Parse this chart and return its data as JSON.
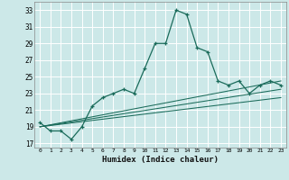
{
  "title": "",
  "xlabel": "Humidex (Indice chaleur)",
  "ylabel": "",
  "bg_color": "#cce8e8",
  "grid_color": "#ffffff",
  "line_color": "#1a6b5a",
  "xlim": [
    -0.5,
    23.5
  ],
  "ylim": [
    16.5,
    34.0
  ],
  "yticks": [
    17,
    19,
    21,
    23,
    25,
    27,
    29,
    31,
    33
  ],
  "xticks": [
    0,
    1,
    2,
    3,
    4,
    5,
    6,
    7,
    8,
    9,
    10,
    11,
    12,
    13,
    14,
    15,
    16,
    17,
    18,
    19,
    20,
    21,
    22,
    23
  ],
  "series": [
    {
      "x": [
        0,
        1,
        2,
        3,
        4,
        5,
        6,
        7,
        8,
        9,
        10,
        11,
        12,
        13,
        14,
        15,
        16,
        17,
        18,
        19,
        20,
        21,
        22,
        23
      ],
      "y": [
        19.5,
        18.5,
        18.5,
        17.5,
        19.0,
        21.5,
        22.5,
        23.0,
        23.5,
        23.0,
        26.0,
        29.0,
        29.0,
        33.0,
        32.5,
        28.5,
        28.0,
        24.5,
        24.0,
        24.5,
        23.0,
        24.0,
        24.5,
        24.0
      ],
      "marker": "+"
    },
    {
      "x": [
        0,
        23
      ],
      "y": [
        19.0,
        24.5
      ],
      "marker": null
    },
    {
      "x": [
        0,
        23
      ],
      "y": [
        19.0,
        23.5
      ],
      "marker": null
    },
    {
      "x": [
        0,
        23
      ],
      "y": [
        19.0,
        22.5
      ],
      "marker": null
    }
  ]
}
